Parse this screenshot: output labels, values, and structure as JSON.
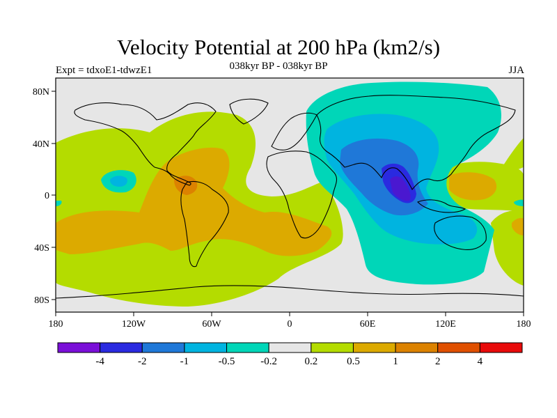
{
  "title": "Velocity Potential at 200 hPa (km2/s)",
  "subtitle": "038kyr BP - 038kyr BP",
  "left_label": "Expt = tdxoE1-tdwzE1",
  "right_label": "JJA",
  "colors": {
    "background": "#e6e6e6",
    "ocean_note": "filled contour map",
    "neg_strong": "#7a0fd8",
    "neg_4": "#2a2ae0",
    "neg_2": "#1f78d8",
    "neg_1": "#00b4e0",
    "neg_05": "#00d6b8",
    "neutral": "#e6e6e6",
    "pos_02": "#b4dc00",
    "pos_05": "#dcaa00",
    "pos_1": "#dc8200",
    "pos_2": "#e05000",
    "pos_4": "#e80a0a"
  },
  "chart_data": {
    "type": "heatmap",
    "title": "Velocity Potential at 200 hPa (km2/s)",
    "subtitle": "038kyr BP - 038kyr BP",
    "season": "JJA",
    "experiment": "Expt = tdxoE1-tdwzE1",
    "xlim": [
      -180,
      180
    ],
    "ylim": [
      -90,
      90
    ],
    "x_ticks": [
      "180",
      "120W",
      "60W",
      "0",
      "60E",
      "120E",
      "180"
    ],
    "y_ticks": [
      "80N",
      "40N",
      "0",
      "40S",
      "80S"
    ],
    "colorbar_labels": [
      "-4",
      "-2",
      "-1",
      "-0.5",
      "-0.2",
      "0.2",
      "0.5",
      "1",
      "2",
      "4"
    ],
    "colorbar_colors": [
      "#7a0fd8",
      "#2a2ae0",
      "#1f78d8",
      "#00b4e0",
      "#00d6b8",
      "#e6e6e6",
      "#b4dc00",
      "#dcaa00",
      "#dc8200",
      "#e05000",
      "#e80a0a"
    ],
    "features": [
      {
        "region": "South Asia / Indian Ocean",
        "sign": "negative",
        "min_class": "< -4"
      },
      {
        "region": "Tropical Americas / South Atlantic",
        "sign": "positive",
        "max_class": "1 to 2"
      },
      {
        "region": "Western Pacific",
        "sign": "positive",
        "max_class": "0.5 to 1"
      }
    ]
  }
}
